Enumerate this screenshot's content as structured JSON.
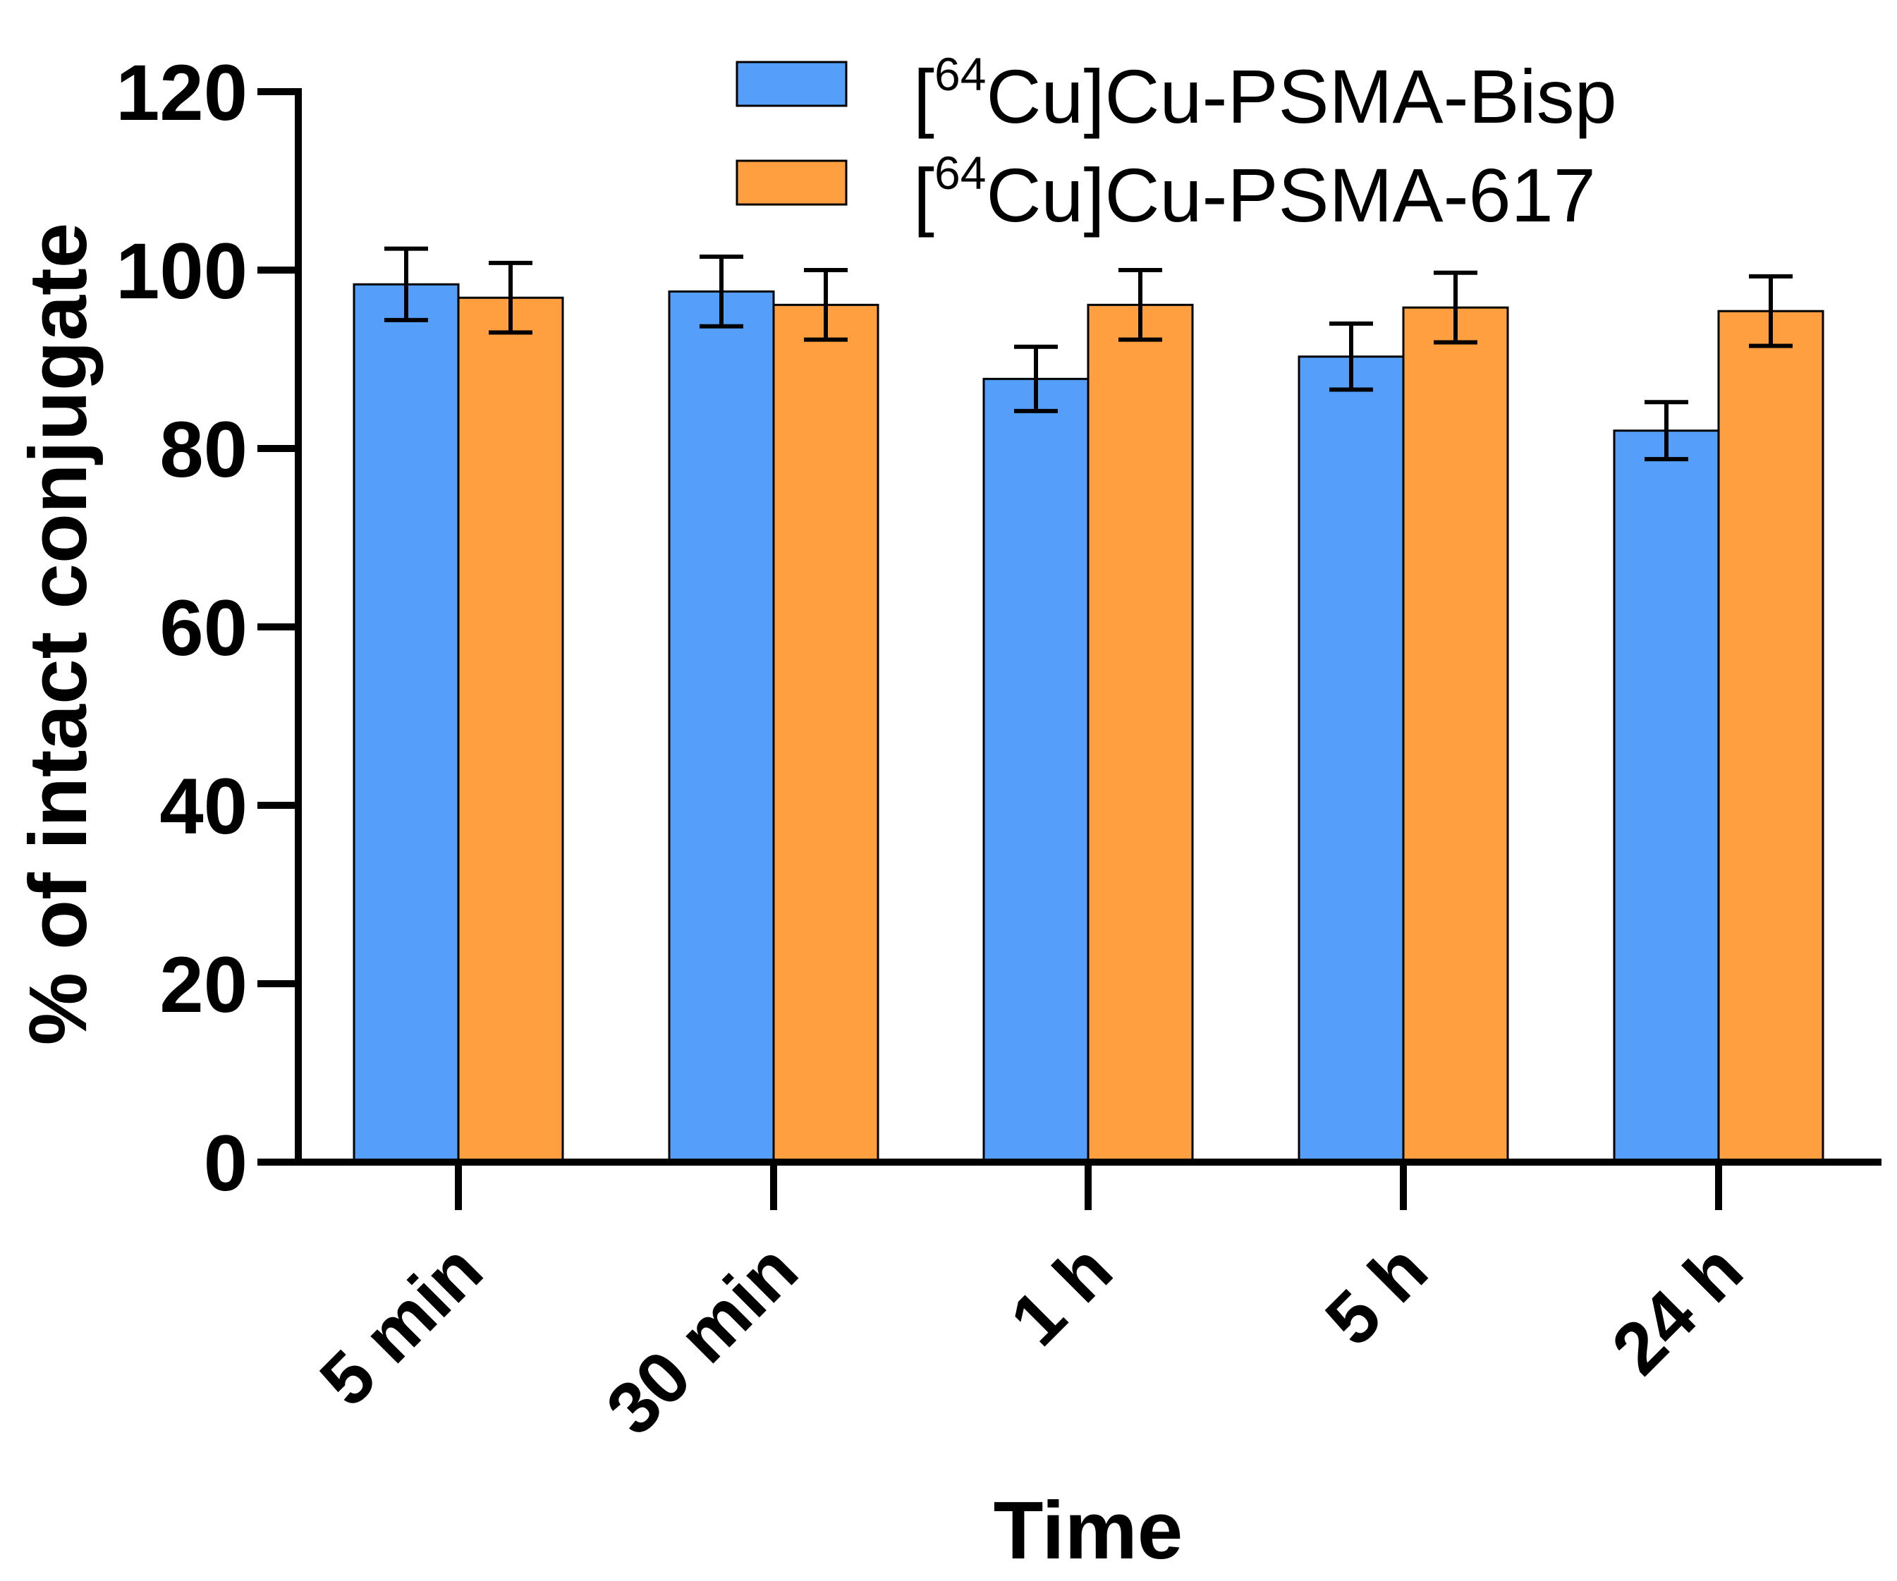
{
  "chart_data": {
    "type": "bar",
    "title": "",
    "xlabel": "Time",
    "ylabel": "% of intact conjugate",
    "ylim": [
      0,
      120
    ],
    "yticks": [
      0,
      20,
      40,
      60,
      80,
      100,
      120
    ],
    "categories": [
      "5 min",
      "30 min",
      "1 h",
      "5 h",
      "24 h"
    ],
    "series": [
      {
        "name": "[64Cu]Cu-PSMA-Bisp",
        "label_open": "[",
        "label_sup": "64",
        "label_rest": "Cu]Cu-PSMA-Bisp",
        "color": "#559ffb",
        "values": [
          98.4,
          97.6,
          87.8,
          90.3,
          82.0
        ],
        "errors": [
          4.0,
          3.9,
          3.6,
          3.7,
          3.2
        ]
      },
      {
        "name": "[64Cu]Cu-PSMA-617",
        "label_open": "[",
        "label_sup": "64",
        "label_rest": "Cu]Cu-PSMA-617",
        "color": "#ff9f3f",
        "values": [
          96.9,
          96.1,
          96.1,
          95.8,
          95.4
        ],
        "errors": [
          3.9,
          3.9,
          3.9,
          3.9,
          3.9
        ]
      }
    ],
    "legend_position": "top-right",
    "grid": false
  }
}
